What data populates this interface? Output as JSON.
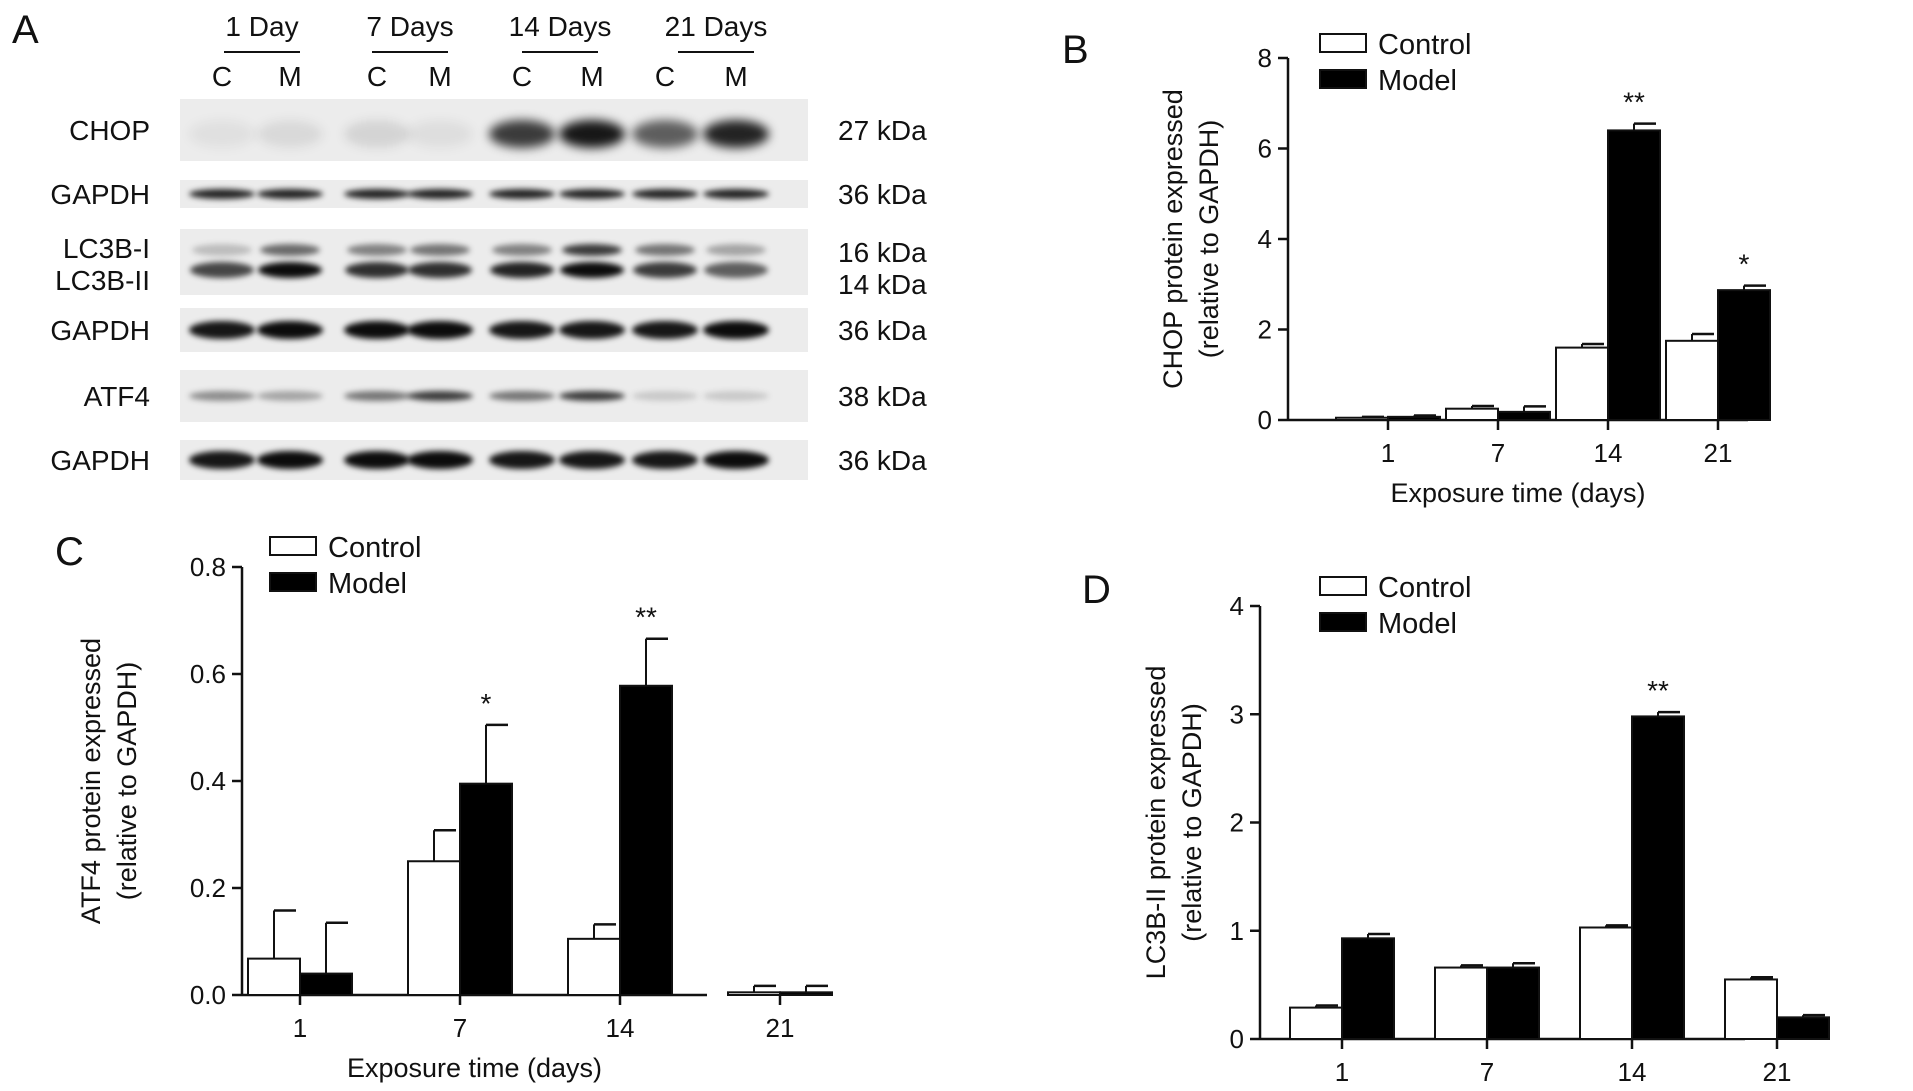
{
  "panels": {
    "a": "A",
    "b": "B",
    "c": "C",
    "d": "D"
  },
  "blot": {
    "timepoints": [
      "1 Day",
      "7 Days",
      "14 Days",
      "21 Days"
    ],
    "lanes": [
      "C",
      "M",
      "C",
      "M",
      "C",
      "M",
      "C",
      "M"
    ],
    "rows": [
      {
        "label": "CHOP",
        "kda": "27 kDa",
        "kind": "chop",
        "intensity": [
          0.05,
          0.08,
          0.1,
          0.06,
          0.75,
          0.9,
          0.6,
          0.85
        ]
      },
      {
        "label": "GAPDH",
        "kda": "36 kDa",
        "kind": "thin",
        "intensity": [
          0.85,
          0.85,
          0.85,
          0.85,
          0.85,
          0.85,
          0.85,
          0.85
        ]
      },
      {
        "label": "LC3B-I",
        "label2": "LC3B-II",
        "kda": "16 kDa",
        "kda2": "14 kDa",
        "kind": "double",
        "intensity": [
          0.2,
          0.55,
          0.45,
          0.5,
          0.45,
          0.75,
          0.5,
          0.3
        ],
        "intensity2": [
          0.7,
          0.95,
          0.8,
          0.8,
          0.85,
          0.95,
          0.75,
          0.6
        ]
      },
      {
        "label": "GAPDH",
        "kda": "36 kDa",
        "kind": "thick",
        "intensity": [
          0.9,
          0.95,
          0.95,
          0.95,
          0.9,
          0.9,
          0.9,
          0.95
        ]
      },
      {
        "label": "ATF4",
        "kda": "38 kDa",
        "kind": "thin",
        "intensity": [
          0.4,
          0.3,
          0.5,
          0.75,
          0.5,
          0.75,
          0.15,
          0.15
        ]
      },
      {
        "label": "GAPDH",
        "kda": "36 kDa",
        "kind": "thick",
        "intensity": [
          0.9,
          0.95,
          0.95,
          0.95,
          0.9,
          0.9,
          0.9,
          0.95
        ]
      }
    ]
  },
  "chart_data": [
    {
      "id": "B",
      "type": "bar",
      "xlabel": "Exposure time (days)",
      "ylabel": [
        "CHOP protein expressed",
        "(relative to GAPDH)"
      ],
      "categories": [
        "1",
        "7",
        "14",
        "21"
      ],
      "ylim": [
        0,
        8
      ],
      "yticks": [
        "0",
        "2",
        "4",
        "6",
        "8"
      ],
      "series": [
        {
          "name": "Control",
          "color": "#ffffff",
          "values": [
            0.05,
            0.25,
            1.6,
            1.75
          ],
          "errors": [
            0.02,
            0.06,
            0.08,
            0.15
          ]
        },
        {
          "name": "Model",
          "color": "#000000",
          "values": [
            0.07,
            0.18,
            6.4,
            2.87
          ],
          "errors": [
            0.03,
            0.12,
            0.15,
            0.1
          ]
        }
      ],
      "annotations": [
        {
          "category": "14",
          "series": "Model",
          "text": "**"
        },
        {
          "category": "21",
          "series": "Model",
          "text": "*"
        }
      ],
      "legend": "top-left"
    },
    {
      "id": "C",
      "type": "bar",
      "xlabel": "Exposure time (days)",
      "ylabel": [
        "ATF4 protein expressed",
        "(relative to GAPDH)"
      ],
      "categories": [
        "1",
        "7",
        "14",
        "21"
      ],
      "ylim": [
        0,
        0.8
      ],
      "yticks": [
        "0.0",
        "0.2",
        "0.4",
        "0.6",
        "0.8"
      ],
      "series": [
        {
          "name": "Control",
          "color": "#ffffff",
          "values": [
            0.068,
            0.25,
            0.105,
            0.005
          ],
          "errors": [
            0.09,
            0.058,
            0.027,
            0.012
          ]
        },
        {
          "name": "Model",
          "color": "#000000",
          "values": [
            0.04,
            0.395,
            0.578,
            0.005
          ],
          "errors": [
            0.095,
            0.11,
            0.088,
            0.012
          ]
        }
      ],
      "annotations": [
        {
          "category": "7",
          "series": "Model",
          "text": "*"
        },
        {
          "category": "14",
          "series": "Model",
          "text": "**"
        }
      ],
      "legend": "top-left"
    },
    {
      "id": "D",
      "type": "bar",
      "xlabel": "Exposure time (days)",
      "ylabel": [
        "LC3B-II protein expressed",
        "(relative to GAPDH)"
      ],
      "categories": [
        "1",
        "7",
        "14",
        "21"
      ],
      "ylim": [
        0,
        4
      ],
      "yticks": [
        "0",
        "1",
        "2",
        "3",
        "4"
      ],
      "series": [
        {
          "name": "Control",
          "color": "#ffffff",
          "values": [
            0.29,
            0.66,
            1.03,
            0.55
          ],
          "errors": [
            0.02,
            0.02,
            0.02,
            0.02
          ]
        },
        {
          "name": "Model",
          "color": "#000000",
          "values": [
            0.93,
            0.66,
            2.98,
            0.2
          ],
          "errors": [
            0.04,
            0.04,
            0.04,
            0.02
          ]
        }
      ],
      "annotations": [
        {
          "category": "14",
          "series": "Model",
          "text": "**"
        }
      ],
      "legend": "top-left"
    }
  ]
}
